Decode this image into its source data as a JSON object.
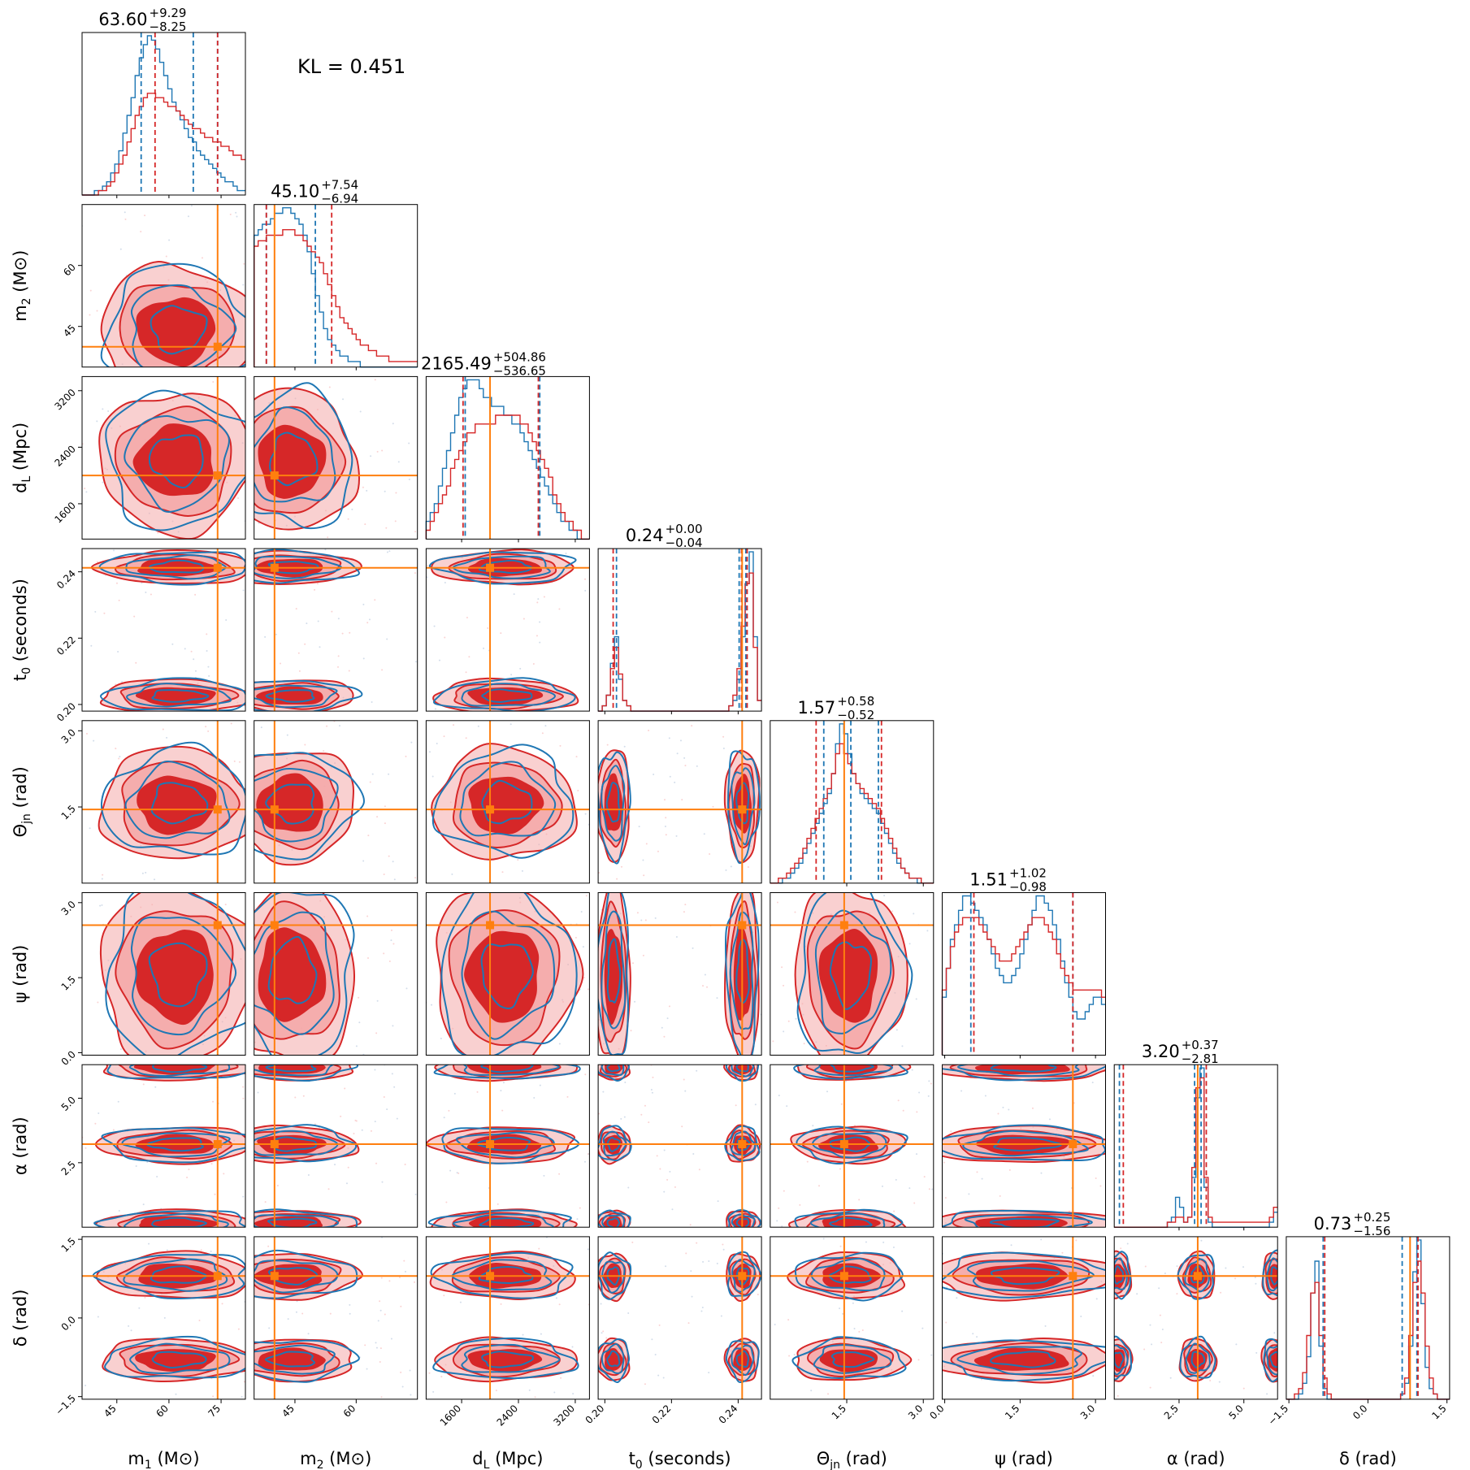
{
  "chart_data": {
    "type": "scatter",
    "title": "",
    "annotation": "KL = 0.451",
    "colors": {
      "posterior_a": "#1f77b4",
      "posterior_b": "#d62728",
      "injection": "#ff7f0e",
      "fill_inner": "#d62728",
      "fill_outer": "#f4a9a9"
    },
    "parameters": [
      {
        "key": "m1",
        "label": "m",
        "sub": "1",
        "unit": "(M⊙)",
        "range": [
          35,
          82
        ],
        "ticks": [
          45,
          60,
          75
        ],
        "tick_labels": [
          "45",
          "60",
          "75"
        ],
        "truth": 74,
        "median": "63.60",
        "plus": "+9.29",
        "minus": "−8.25"
      },
      {
        "key": "m2",
        "label": "m",
        "sub": "2",
        "unit": "(M⊙)",
        "range": [
          35,
          75
        ],
        "ticks": [
          45,
          60
        ],
        "tick_labels": [
          "45",
          "60"
        ],
        "truth": 40,
        "median": "45.10",
        "plus": "+7.54",
        "minus": "−6.94"
      },
      {
        "key": "dL",
        "label": "d",
        "sub": "L",
        "unit": "(Mpc)",
        "range": [
          1100,
          3400
        ],
        "ticks": [
          1600,
          2400,
          3200
        ],
        "tick_labels": [
          "1600",
          "2400",
          "3200"
        ],
        "truth": 2000,
        "median": "2165.49",
        "plus": "+504.86",
        "minus": "−536.65"
      },
      {
        "key": "t0",
        "label": "t",
        "sub": "0",
        "unit": "(seconds)",
        "range": [
          0.198,
          0.247
        ],
        "ticks": [
          0.2,
          0.22,
          0.24
        ],
        "tick_labels": [
          "0.20",
          "0.22",
          "0.24"
        ],
        "truth": 0.2412,
        "median": "0.24",
        "plus": "+0.00",
        "minus": "−0.04"
      },
      {
        "key": "thetajn",
        "label": "Θ",
        "sub": "jn",
        "unit": "(rad)",
        "range": [
          0,
          3.2
        ],
        "ticks": [
          1.5,
          3.0
        ],
        "tick_labels": [
          "1.5",
          "3.0"
        ],
        "truth": 1.45,
        "median": "1.57",
        "plus": "+0.58",
        "minus": "−0.52"
      },
      {
        "key": "psi",
        "label": "ψ",
        "sub": "",
        "unit": "(rad)",
        "range": [
          -0.05,
          3.2
        ],
        "ticks": [
          0.0,
          1.5,
          3.0
        ],
        "tick_labels": [
          "0.0",
          "1.5",
          "3.0"
        ],
        "truth": 2.55,
        "median": "1.51",
        "plus": "+1.02",
        "minus": "−0.98"
      },
      {
        "key": "alpha",
        "label": "α",
        "sub": "",
        "unit": "(rad)",
        "range": [
          0,
          6.3
        ],
        "ticks": [
          2.5,
          5.0
        ],
        "tick_labels": [
          "2.5",
          "5.0"
        ],
        "truth": 3.22,
        "median": "3.20",
        "plus": "+0.37",
        "minus": "−2.81"
      },
      {
        "key": "delta",
        "label": "δ",
        "sub": "",
        "unit": "(rad)",
        "range": [
          -1.55,
          1.55
        ],
        "ticks": [
          -1.5,
          0.0,
          1.5
        ],
        "tick_labels": [
          "−1.5",
          "0.0",
          "1.5"
        ],
        "truth": 0.8,
        "median": "0.73",
        "plus": "+0.25",
        "minus": "−1.56"
      }
    ],
    "histograms": [
      {
        "key": "m1",
        "blue_quantiles": [
          52,
          67,
          74
        ],
        "red_quantiles": [
          56,
          74
        ],
        "truth_line": false,
        "blue": [
          0,
          0,
          0,
          1,
          1,
          2,
          3,
          5,
          7,
          10,
          14,
          18,
          22,
          27,
          31,
          34,
          36,
          35,
          33,
          30,
          27,
          24,
          21,
          19,
          17,
          15,
          13,
          12,
          10,
          9,
          8,
          7,
          6,
          5,
          4,
          3,
          3,
          2,
          1,
          1
        ],
        "red": [
          0,
          0,
          0,
          0,
          1,
          1,
          2,
          3,
          5,
          7,
          9,
          12,
          15,
          18,
          20,
          22,
          23,
          23,
          22,
          22,
          21,
          20,
          20,
          19,
          18,
          17,
          16,
          15,
          15,
          14,
          13,
          13,
          12,
          12,
          11,
          11,
          10,
          9,
          9,
          8
        ]
      },
      {
        "key": "m2",
        "blue_quantiles": [
          38,
          50
        ],
        "red_quantiles": [
          38,
          54
        ],
        "truth_line": true,
        "blue": [
          24,
          25,
          26,
          26,
          27,
          28,
          28,
          29,
          29,
          28,
          27,
          26,
          24,
          21,
          17,
          13,
          10,
          7,
          5,
          4,
          3,
          2,
          2,
          1,
          1,
          1,
          0,
          0,
          0,
          0,
          0,
          0,
          0,
          0,
          0,
          0,
          0,
          0,
          0,
          0
        ],
        "red": [
          22,
          23,
          23,
          24,
          24,
          24,
          24,
          25,
          25,
          25,
          24,
          24,
          23,
          22,
          21,
          20,
          19,
          17,
          15,
          13,
          11,
          9,
          8,
          7,
          6,
          5,
          4,
          4,
          3,
          3,
          2,
          2,
          2,
          1,
          1,
          1,
          1,
          1,
          1,
          1
        ]
      },
      {
        "key": "dL",
        "blue_quantiles": [
          1650,
          2700
        ],
        "red_quantiles": [
          1620,
          2680
        ],
        "truth_line": true,
        "blue": [
          2,
          3,
          4,
          6,
          8,
          10,
          12,
          14,
          16,
          17,
          18,
          18,
          18,
          17,
          16,
          16,
          15,
          15,
          15,
          14,
          14,
          13,
          13,
          12,
          11,
          10,
          9,
          8,
          7,
          6,
          5,
          4,
          3,
          2,
          2,
          1,
          1,
          0,
          0,
          0
        ],
        "red": [
          1,
          2,
          3,
          4,
          5,
          6,
          8,
          9,
          10,
          11,
          12,
          12,
          13,
          13,
          13,
          13,
          13,
          14,
          14,
          14,
          14,
          14,
          14,
          13,
          13,
          12,
          11,
          10,
          9,
          8,
          7,
          5,
          4,
          3,
          2,
          2,
          1,
          1,
          0,
          0
        ]
      },
      {
        "key": "t0",
        "blue_quantiles": [
          0.2035,
          0.2403,
          0.2423
        ],
        "red_quantiles": [
          0.2025,
          0.241,
          0.2427
        ],
        "truth_line": true,
        "blue": [
          0,
          1,
          3,
          9,
          14,
          6,
          2,
          1,
          0,
          0,
          0,
          0,
          0,
          0,
          0,
          0,
          0,
          0,
          0,
          0,
          0,
          0,
          0,
          0,
          0,
          0,
          0,
          0,
          0,
          0,
          0,
          0,
          1,
          2,
          6,
          14,
          24,
          30,
          14,
          2
        ],
        "red": [
          0,
          1,
          3,
          8,
          12,
          7,
          2,
          1,
          0,
          0,
          0,
          0,
          0,
          0,
          0,
          0,
          0,
          0,
          0,
          0,
          0,
          0,
          0,
          0,
          0,
          0,
          0,
          0,
          0,
          0,
          0,
          0,
          1,
          3,
          8,
          16,
          24,
          26,
          12,
          2
        ]
      },
      {
        "key": "thetajn",
        "blue_quantiles": [
          1.05,
          1.58,
          2.12
        ],
        "red_quantiles": [
          0.9,
          2.18
        ],
        "truth_line": true,
        "blue": [
          0,
          0,
          0,
          1,
          1,
          2,
          3,
          4,
          6,
          8,
          10,
          12,
          14,
          16,
          18,
          22,
          28,
          32,
          30,
          26,
          22,
          20,
          18,
          17,
          16,
          15,
          14,
          12,
          10,
          8,
          6,
          4,
          3,
          2,
          1,
          1,
          0,
          0,
          0,
          0
        ],
        "red": [
          0,
          0,
          1,
          1,
          2,
          3,
          4,
          5,
          7,
          9,
          11,
          13,
          15,
          17,
          19,
          22,
          26,
          28,
          26,
          24,
          22,
          20,
          19,
          18,
          17,
          16,
          15,
          13,
          11,
          9,
          7,
          5,
          3,
          2,
          1,
          1,
          1,
          0,
          0,
          0
        ]
      },
      {
        "key": "psi",
        "blue_quantiles": [
          0.52,
          2.55
        ],
        "red_quantiles": [
          0.58,
          2.55
        ],
        "truth_line": false,
        "blue": [
          8,
          12,
          16,
          18,
          20,
          22,
          22,
          21,
          20,
          19,
          18,
          16,
          14,
          12,
          11,
          10,
          10,
          11,
          12,
          14,
          16,
          18,
          20,
          22,
          22,
          21,
          20,
          18,
          16,
          13,
          10,
          8,
          6,
          5,
          5,
          6,
          7,
          8,
          8,
          7
        ],
        "red": [
          9,
          12,
          15,
          17,
          18,
          19,
          19,
          19,
          19,
          18,
          17,
          16,
          15,
          14,
          13,
          13,
          13,
          14,
          15,
          16,
          17,
          18,
          19,
          19,
          19,
          18,
          17,
          16,
          14,
          12,
          11,
          10,
          9,
          9,
          9,
          9,
          9,
          9,
          9,
          8
        ]
      },
      {
        "key": "alpha",
        "blue_quantiles": [
          0.2,
          3.1,
          3.35
        ],
        "red_quantiles": [
          0.35,
          3.55
        ],
        "truth_line": true,
        "blue": [
          0,
          0,
          0,
          0,
          0,
          0,
          0,
          0,
          0,
          0,
          0,
          0,
          0,
          1,
          2,
          6,
          4,
          1,
          2,
          10,
          26,
          32,
          8,
          1,
          0,
          0,
          0,
          0,
          0,
          0,
          0,
          0,
          0,
          0,
          0,
          0,
          0,
          0,
          1,
          3
        ],
        "red": [
          0,
          0,
          0,
          0,
          0,
          0,
          0,
          0,
          0,
          0,
          0,
          0,
          0,
          1,
          1,
          2,
          2,
          1,
          2,
          12,
          28,
          30,
          10,
          2,
          1,
          1,
          1,
          1,
          1,
          1,
          1,
          1,
          1,
          1,
          1,
          1,
          1,
          1,
          2,
          4
        ]
      },
      {
        "key": "delta",
        "blue_quantiles": [
          -0.85,
          0.65,
          0.93
        ],
        "red_quantiles": [
          -0.82,
          0.95
        ],
        "truth_line": true,
        "blue": [
          0,
          0,
          0,
          1,
          3,
          8,
          20,
          26,
          10,
          2,
          0,
          0,
          0,
          0,
          0,
          0,
          0,
          0,
          0,
          0,
          0,
          0,
          0,
          0,
          0,
          0,
          0,
          0,
          1,
          3,
          10,
          24,
          30,
          18,
          6,
          2,
          1,
          0,
          0,
          0
        ],
        "red": [
          0,
          0,
          1,
          2,
          5,
          12,
          20,
          22,
          12,
          4,
          1,
          0,
          0,
          0,
          0,
          0,
          0,
          0,
          0,
          0,
          0,
          0,
          0,
          0,
          0,
          0,
          0,
          0,
          1,
          4,
          12,
          22,
          26,
          20,
          10,
          4,
          1,
          0,
          0,
          0
        ]
      }
    ]
  }
}
